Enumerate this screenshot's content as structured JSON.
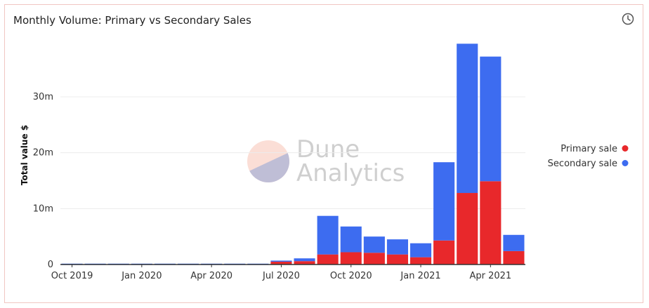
{
  "title": "Monthly Volume: Primary vs Secondary Sales",
  "watermark": {
    "line1": "Dune",
    "line2": "Analytics"
  },
  "colors": {
    "primary": "#e8282b",
    "secondary": "#3d6cf0",
    "grid": "#ececec",
    "axis": "#333333"
  },
  "icons": {
    "top_right": "clock-icon"
  },
  "chart_data": {
    "type": "bar",
    "stacked": true,
    "categories": [
      "Oct 2019",
      "Nov 2019",
      "Dec 2019",
      "Jan 2020",
      "Feb 2020",
      "Mar 2020",
      "Apr 2020",
      "May 2020",
      "Jun 2020",
      "Jul 2020",
      "Aug 2020",
      "Sep 2020",
      "Oct 2020",
      "Nov 2020",
      "Dec 2020",
      "Jan 2021",
      "Feb 2021",
      "Mar 2021",
      "Apr 2021",
      "May 2021"
    ],
    "series": [
      {
        "name": "Primary sale",
        "color": "#e8282b",
        "values": [
          0.05,
          0.05,
          0.05,
          0.05,
          0.05,
          0.05,
          0.05,
          0.05,
          0.05,
          0.5,
          0.6,
          1.8,
          2.2,
          2.1,
          1.8,
          1.3,
          4.3,
          12.8,
          14.9,
          2.4
        ]
      },
      {
        "name": "Secondary sale",
        "color": "#3d6cf0",
        "values": [
          0.1,
          0.1,
          0.1,
          0.1,
          0.1,
          0.1,
          0.1,
          0.1,
          0.1,
          0.2,
          0.5,
          6.9,
          4.6,
          2.9,
          2.7,
          2.5,
          14.0,
          26.7,
          22.3,
          2.9
        ]
      }
    ],
    "xtick_labels": [
      "Oct 2019",
      "Jan 2020",
      "Apr 2020",
      "Jul 2020",
      "Oct 2020",
      "Jan 2021",
      "Apr 2021"
    ],
    "xtick_indices": [
      0,
      3,
      6,
      9,
      12,
      15,
      18
    ],
    "yticks": [
      0,
      10,
      20,
      30
    ],
    "ytick_labels": [
      "0",
      "10m",
      "20m",
      "30m"
    ],
    "ylim": [
      0,
      40
    ],
    "ylabel": "Total value $",
    "xlabel": "",
    "grid": true,
    "legend_position": "right"
  }
}
